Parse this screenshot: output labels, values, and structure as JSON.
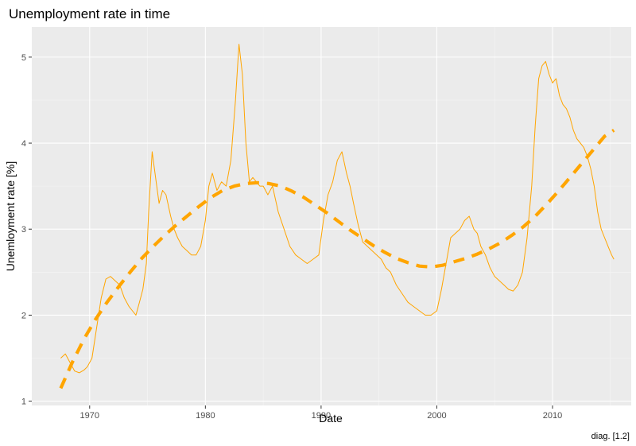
{
  "chart_data": {
    "type": "line",
    "title": "Unemployment rate in time",
    "xlabel": "Date",
    "ylabel": "Unemloyment rate [%]",
    "caption": "diag. [1.2]",
    "xlim": [
      1965.6,
      1966.8
    ],
    "ylim": [
      0.95,
      5.35
    ],
    "x_ticks": [
      1970,
      1980,
      1990,
      2000,
      2010
    ],
    "x_tick_labels": [
      "1970",
      "1980",
      "1990",
      "2000",
      "2010"
    ],
    "y_ticks": [
      1,
      2,
      3,
      4,
      5
    ],
    "y_tick_labels": [
      "1",
      "2",
      "3",
      "4",
      "5"
    ],
    "grid": true,
    "legend": "none",
    "series": [
      {
        "style": "solid",
        "color": "#FFA500",
        "x": [
          1967.5,
          1967.9,
          1968.3,
          1968.7,
          1969.1,
          1969.5,
          1969.8,
          1970.2,
          1970.6,
          1971.0,
          1971.4,
          1971.8,
          1972.2,
          1972.6,
          1973.0,
          1973.4,
          1973.7,
          1974.0,
          1974.3,
          1974.6,
          1974.9,
          1975.1,
          1975.4,
          1975.7,
          1976.0,
          1976.3,
          1976.6,
          1977.0,
          1977.3,
          1977.6,
          1978.0,
          1978.4,
          1978.8,
          1979.2,
          1979.6,
          1980.0,
          1980.3,
          1980.6,
          1981.0,
          1981.4,
          1981.8,
          1982.2,
          1982.6,
          1982.9,
          1983.2,
          1983.5,
          1983.8,
          1984.1,
          1984.4,
          1984.7,
          1985.0,
          1985.4,
          1985.8,
          1986.3,
          1986.8,
          1987.3,
          1987.8,
          1988.3,
          1988.8,
          1989.3,
          1989.8,
          1990.2,
          1990.6,
          1991.0,
          1991.4,
          1991.8,
          1992.2,
          1992.5,
          1992.8,
          1993.2,
          1993.6,
          1994.0,
          1994.4,
          1994.8,
          1995.2,
          1995.6,
          1996.0,
          1996.5,
          1997.0,
          1997.5,
          1998.0,
          1998.5,
          1999.0,
          1999.5,
          2000.0,
          2000.4,
          2000.8,
          2001.2,
          2001.6,
          2002.0,
          2002.4,
          2002.8,
          2003.2,
          2003.5,
          2003.8,
          2004.2,
          2004.6,
          2005.0,
          2005.4,
          2005.8,
          2006.2,
          2006.6,
          2007.0,
          2007.4,
          2007.8,
          2008.2,
          2008.5,
          2008.8,
          2009.1,
          2009.4,
          2009.7,
          2010.0,
          2010.3,
          2010.6,
          2010.9,
          2011.2,
          2011.5,
          2011.8,
          2012.1,
          2012.4,
          2012.7,
          2013.0,
          2013.3,
          2013.6,
          2013.9,
          2014.2,
          2014.5,
          2014.8,
          2015.1,
          2015.3
        ],
        "y": [
          1.5,
          1.55,
          1.45,
          1.35,
          1.33,
          1.36,
          1.4,
          1.5,
          1.85,
          2.2,
          2.42,
          2.45,
          2.4,
          2.35,
          2.2,
          2.1,
          2.05,
          2.0,
          2.15,
          2.3,
          2.6,
          3.2,
          3.9,
          3.6,
          3.3,
          3.45,
          3.4,
          3.15,
          3.0,
          2.9,
          2.8,
          2.75,
          2.7,
          2.7,
          2.8,
          3.1,
          3.5,
          3.65,
          3.45,
          3.55,
          3.5,
          3.8,
          4.5,
          5.15,
          4.8,
          4.0,
          3.55,
          3.6,
          3.55,
          3.5,
          3.5,
          3.4,
          3.5,
          3.2,
          3.0,
          2.8,
          2.7,
          2.65,
          2.6,
          2.65,
          2.7,
          3.1,
          3.4,
          3.55,
          3.8,
          3.9,
          3.65,
          3.5,
          3.3,
          3.05,
          2.85,
          2.8,
          2.75,
          2.7,
          2.65,
          2.55,
          2.5,
          2.35,
          2.25,
          2.15,
          2.1,
          2.05,
          2.0,
          2.0,
          2.05,
          2.3,
          2.6,
          2.9,
          2.95,
          3.0,
          3.1,
          3.15,
          3.0,
          2.95,
          2.8,
          2.7,
          2.55,
          2.45,
          2.4,
          2.35,
          2.3,
          2.28,
          2.35,
          2.5,
          2.9,
          3.5,
          4.2,
          4.75,
          4.9,
          4.95,
          4.8,
          4.7,
          4.75,
          4.55,
          4.45,
          4.4,
          4.3,
          4.15,
          4.05,
          4.0,
          3.95,
          3.85,
          3.7,
          3.5,
          3.2,
          3.0,
          2.9,
          2.8,
          2.7,
          2.65
        ]
      },
      {
        "style": "dashed",
        "color": "#FFA500",
        "x": [
          1967.5,
          1968.5,
          1969.5,
          1970.5,
          1971.5,
          1972.5,
          1973.5,
          1974.5,
          1975.5,
          1976.5,
          1977.5,
          1978.5,
          1979.5,
          1980.5,
          1981.5,
          1982.5,
          1983.5,
          1984.5,
          1985.5,
          1986.5,
          1987.5,
          1988.5,
          1989.5,
          1990.5,
          1991.5,
          1992.5,
          1993.5,
          1994.5,
          1995.5,
          1996.5,
          1997.5,
          1998.5,
          1999.5,
          2000.5,
          2001.5,
          2002.5,
          2003.5,
          2004.5,
          2005.5,
          2006.5,
          2007.5,
          2008.5,
          2009.5,
          2010.5,
          2011.5,
          2012.5,
          2013.5,
          2014.5,
          2015.3
        ],
        "y": [
          1.15,
          1.45,
          1.72,
          1.95,
          2.15,
          2.33,
          2.5,
          2.66,
          2.8,
          2.93,
          3.05,
          3.16,
          3.27,
          3.37,
          3.45,
          3.5,
          3.53,
          3.54,
          3.53,
          3.5,
          3.44,
          3.37,
          3.28,
          3.19,
          3.09,
          2.99,
          2.9,
          2.81,
          2.73,
          2.66,
          2.61,
          2.57,
          2.56,
          2.58,
          2.62,
          2.66,
          2.71,
          2.77,
          2.84,
          2.93,
          3.03,
          3.15,
          3.29,
          3.44,
          3.6,
          3.76,
          3.92,
          4.08,
          4.15
        ]
      }
    ]
  }
}
